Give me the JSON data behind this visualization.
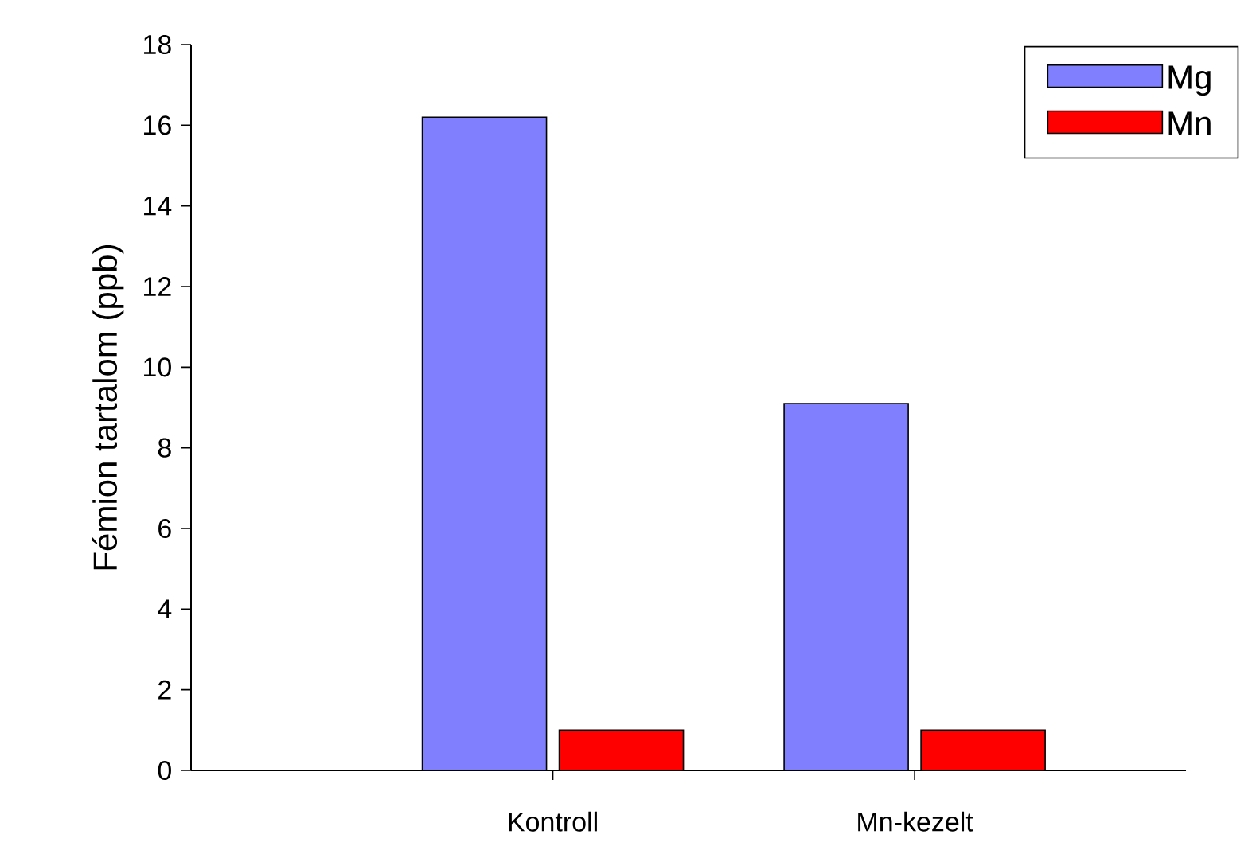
{
  "chart_data": {
    "type": "bar",
    "ylabel": "Fémion tartalom (ppb)",
    "categories": [
      "Kontroll",
      "Mn-kezelt"
    ],
    "series": [
      {
        "name": "Mg",
        "color": "#8080ff",
        "values": [
          16.2,
          9.1
        ]
      },
      {
        "name": "Mn",
        "color": "#ff0000",
        "values": [
          1.0,
          1.0
        ]
      }
    ],
    "ylim": [
      0,
      18
    ],
    "yticks": [
      0,
      2,
      4,
      6,
      8,
      10,
      12,
      14,
      16,
      18
    ],
    "grid": false,
    "legend": "top right"
  }
}
